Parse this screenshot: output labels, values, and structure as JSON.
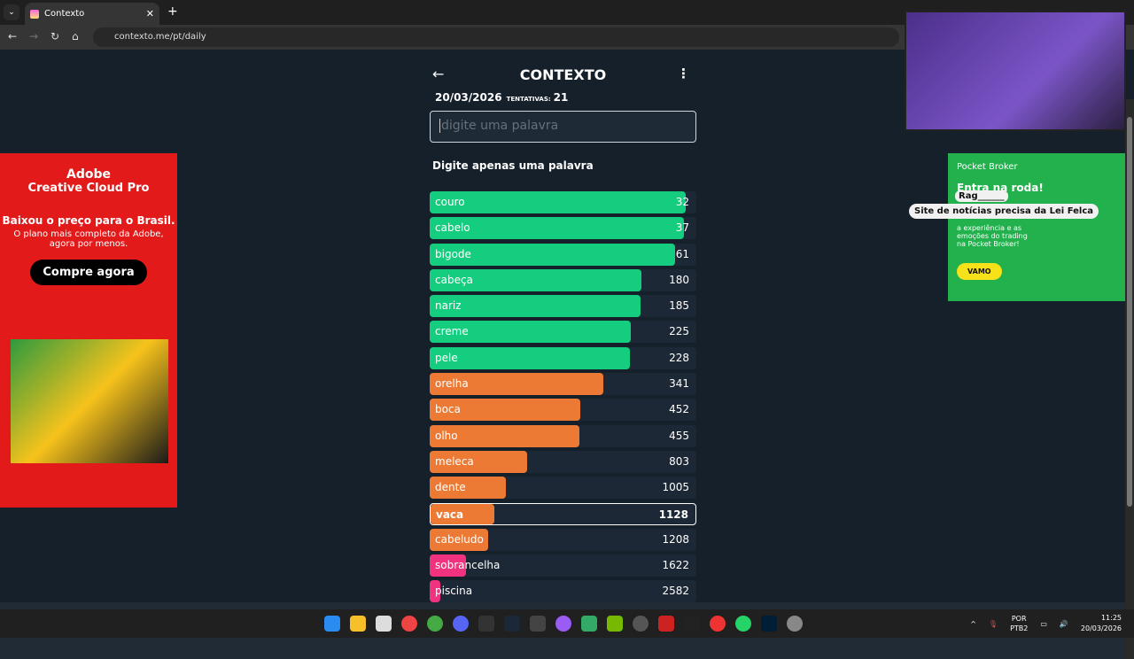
{
  "browser": {
    "tab_title": "Contexto",
    "url": "contexto.me/pt/daily"
  },
  "game": {
    "title": "CONTEXTO",
    "date": "20/03/2026",
    "attempts_label": "TENTATIVAS:",
    "attempts": "21",
    "input_placeholder": "digite uma palavra",
    "message": "Digite apenas uma palavra",
    "colors": {
      "green": "#14cd7e",
      "orange": "#ec7a34",
      "pink": "#f0327f"
    },
    "guesses": [
      {
        "word": "couro",
        "rank": "32",
        "fill": 0.96,
        "color": "green"
      },
      {
        "word": "cabelo",
        "rank": "37",
        "fill": 0.955,
        "color": "green"
      },
      {
        "word": "bigode",
        "rank": "61",
        "fill": 0.92,
        "color": "green"
      },
      {
        "word": "cabeça",
        "rank": "180",
        "fill": 0.795,
        "color": "green"
      },
      {
        "word": "nariz",
        "rank": "185",
        "fill": 0.79,
        "color": "green"
      },
      {
        "word": "creme",
        "rank": "225",
        "fill": 0.755,
        "color": "green"
      },
      {
        "word": "pele",
        "rank": "228",
        "fill": 0.75,
        "color": "green"
      },
      {
        "word": "orelha",
        "rank": "341",
        "fill": 0.65,
        "color": "orange"
      },
      {
        "word": "boca",
        "rank": "452",
        "fill": 0.565,
        "color": "orange"
      },
      {
        "word": "olho",
        "rank": "455",
        "fill": 0.563,
        "color": "orange"
      },
      {
        "word": "meleca",
        "rank": "803",
        "fill": 0.365,
        "color": "orange"
      },
      {
        "word": "dente",
        "rank": "1005",
        "fill": 0.285,
        "color": "orange"
      },
      {
        "word": "vaca",
        "rank": "1128",
        "fill": 0.24,
        "color": "orange",
        "current": true
      },
      {
        "word": "cabeludo",
        "rank": "1208",
        "fill": 0.22,
        "color": "orange"
      },
      {
        "word": "sobrancelha",
        "rank": "1622",
        "fill": 0.135,
        "color": "pink"
      },
      {
        "word": "piscina",
        "rank": "2582",
        "fill": 0.04,
        "color": "pink"
      }
    ]
  },
  "ad_left": {
    "brand": "Adobe",
    "product": "Creative Cloud Pro",
    "headline": "Baixou o preço para o Brasil.",
    "sub": "O plano mais completo da Adobe, agora por menos.",
    "cta": "Compre agora"
  },
  "ad_right": {
    "brand": "Pocket Broker",
    "headline": "Entra na roda!",
    "body": "a experiência e as emoções do trading na Pocket Broker!",
    "cta": "VAMO"
  },
  "chat": {
    "user": "Rag______",
    "message": "Site de notícias precisa da Lei Felca"
  },
  "taskbar": {
    "lang1": "POR",
    "lang2": "PTB2",
    "time": "11:25",
    "date": "20/03/2026"
  }
}
